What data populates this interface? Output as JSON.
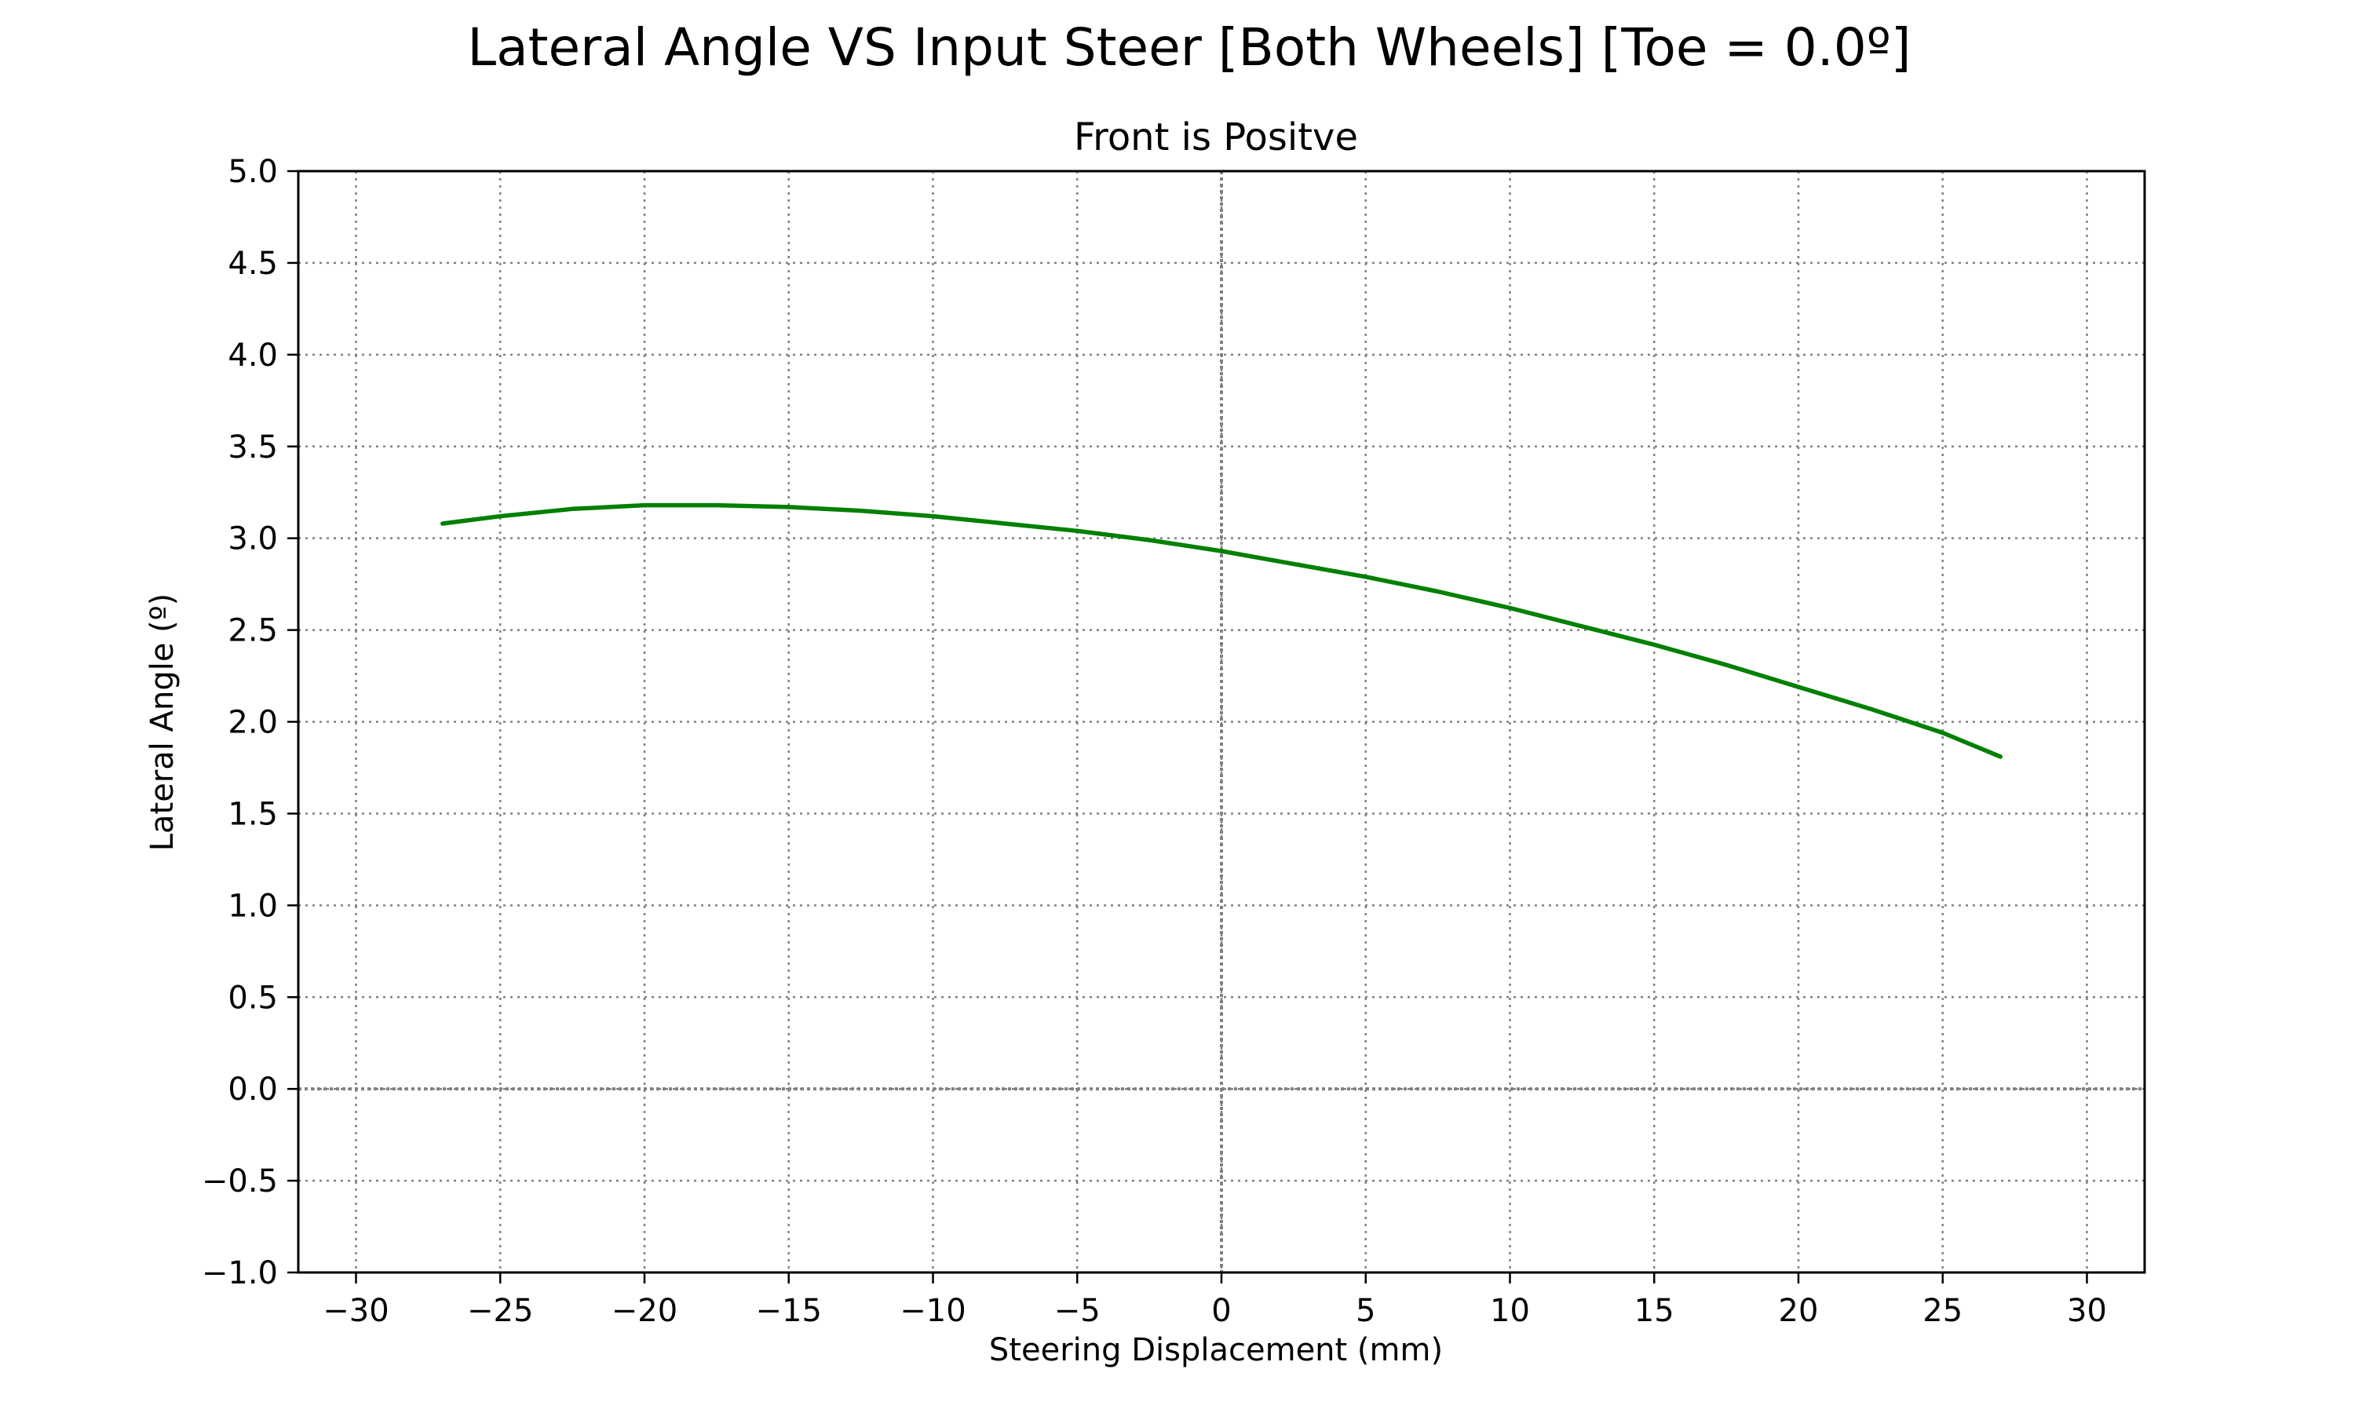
{
  "chart_data": {
    "type": "line",
    "title": "Lateral Angle VS Input Steer [Both Wheels] [Toe = 0.0º]",
    "subtitle": "Front is Positve",
    "xlabel": "Steering Displacement (mm)",
    "ylabel": "Lateral Angle (º)",
    "xlim": [
      -32,
      32
    ],
    "ylim": [
      -1.0,
      5.0
    ],
    "xticks": [
      -30,
      -25,
      -20,
      -15,
      -10,
      -5,
      0,
      5,
      10,
      15,
      20,
      25,
      30
    ],
    "xtick_labels": [
      "−30",
      "−25",
      "−20",
      "−15",
      "−10",
      "−5",
      "0",
      "5",
      "10",
      "15",
      "20",
      "25",
      "30"
    ],
    "yticks": [
      -1.0,
      -0.5,
      0.0,
      0.5,
      1.0,
      1.5,
      2.0,
      2.5,
      3.0,
      3.5,
      4.0,
      4.5,
      5.0
    ],
    "ytick_labels": [
      "−1.0",
      "−0.5",
      "0.0",
      "0.5",
      "1.0",
      "1.5",
      "2.0",
      "2.5",
      "3.0",
      "3.5",
      "4.0",
      "4.5",
      "5.0"
    ],
    "grid": true,
    "grid_style": "dotted",
    "zero_lines": true,
    "series": [
      {
        "color": "#008000",
        "x": [
          -27,
          -25,
          -22.5,
          -20,
          -17.5,
          -15,
          -12.5,
          -10,
          -7.5,
          -5,
          -2.5,
          0,
          2.5,
          5,
          7.5,
          10,
          12.5,
          15,
          17.5,
          20,
          22.5,
          25,
          27
        ],
        "y": [
          3.08,
          3.12,
          3.16,
          3.18,
          3.18,
          3.17,
          3.15,
          3.12,
          3.08,
          3.04,
          2.99,
          2.93,
          2.86,
          2.79,
          2.71,
          2.62,
          2.52,
          2.42,
          2.31,
          2.19,
          2.07,
          1.94,
          1.81
        ]
      }
    ]
  }
}
